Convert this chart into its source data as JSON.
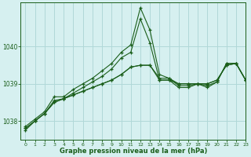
{
  "title": "Graphe pression niveau de la mer (hPa)",
  "background_color": "#d6f0f0",
  "grid_color": "#b0d8d8",
  "line_color": "#1a5e1a",
  "xlim": [
    -0.5,
    23
  ],
  "ylim": [
    1037.5,
    1041.2
  ],
  "yticks": [
    1038,
    1039,
    1040
  ],
  "xticks": [
    0,
    1,
    2,
    3,
    4,
    5,
    6,
    7,
    8,
    9,
    10,
    11,
    12,
    13,
    14,
    15,
    16,
    17,
    18,
    19,
    20,
    21,
    22,
    23
  ],
  "series": [
    [
      1037.85,
      1038.05,
      1038.25,
      1038.65,
      1038.65,
      1038.85,
      1039.0,
      1039.15,
      1039.35,
      1039.55,
      1039.85,
      1040.05,
      1041.05,
      1040.45,
      1039.25,
      1039.15,
      1038.95,
      1038.95,
      1039.0,
      1038.95,
      1039.05,
      1039.55,
      1039.55,
      1039.1
    ],
    [
      1037.8,
      1038.0,
      1038.2,
      1038.55,
      1038.6,
      1038.75,
      1038.9,
      1039.05,
      1039.2,
      1039.4,
      1039.7,
      1039.85,
      1040.75,
      1040.1,
      1039.1,
      1039.1,
      1038.9,
      1038.9,
      1039.0,
      1038.9,
      1039.05,
      1039.55,
      1039.55,
      1039.1
    ],
    [
      1037.8,
      1038.0,
      1038.2,
      1038.5,
      1038.6,
      1038.7,
      1038.8,
      1038.9,
      1039.0,
      1039.1,
      1039.25,
      1039.45,
      1039.5,
      1039.5,
      1039.15,
      1039.15,
      1039.0,
      1039.0,
      1039.0,
      1039.0,
      1039.1,
      1039.5,
      1039.55,
      1039.1
    ],
    [
      1037.75,
      1038.0,
      1038.2,
      1038.5,
      1038.6,
      1038.7,
      1038.8,
      1038.9,
      1039.0,
      1039.1,
      1039.25,
      1039.45,
      1039.5,
      1039.5,
      1039.1,
      1039.1,
      1039.0,
      1039.0,
      1039.0,
      1039.0,
      1039.1,
      1039.5,
      1039.55,
      1039.1
    ]
  ]
}
